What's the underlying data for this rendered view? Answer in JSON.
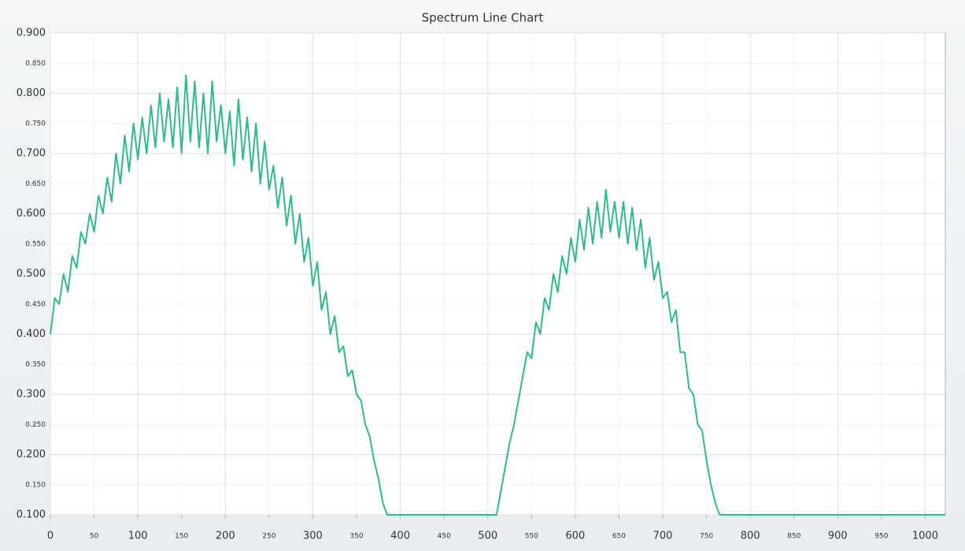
{
  "chart_data": {
    "type": "line",
    "title": "Spectrum Line Chart",
    "color": "#33b88e",
    "grid": true,
    "x": [
      0,
      5,
      10,
      15,
      20,
      25,
      30,
      35,
      40,
      45,
      50,
      55,
      60,
      65,
      70,
      75,
      80,
      85,
      90,
      95,
      100,
      105,
      110,
      115,
      120,
      125,
      130,
      135,
      140,
      145,
      150,
      155,
      160,
      165,
      170,
      175,
      180,
      185,
      190,
      195,
      200,
      205,
      210,
      215,
      220,
      225,
      230,
      235,
      240,
      245,
      250,
      255,
      260,
      265,
      270,
      275,
      280,
      285,
      290,
      295,
      300,
      305,
      310,
      315,
      320,
      325,
      330,
      335,
      340,
      345,
      350,
      355,
      360,
      365,
      370,
      375,
      380,
      385,
      510,
      515,
      520,
      525,
      530,
      535,
      540,
      545,
      550,
      555,
      560,
      565,
      570,
      575,
      580,
      585,
      590,
      595,
      600,
      605,
      610,
      615,
      620,
      625,
      630,
      635,
      640,
      645,
      650,
      655,
      660,
      665,
      670,
      675,
      680,
      685,
      690,
      695,
      700,
      705,
      710,
      715,
      720,
      725,
      730,
      735,
      740,
      745,
      750,
      755,
      760,
      765,
      1023
    ],
    "values": [
      0.4,
      0.46,
      0.45,
      0.5,
      0.47,
      0.53,
      0.51,
      0.57,
      0.55,
      0.6,
      0.57,
      0.63,
      0.6,
      0.66,
      0.62,
      0.7,
      0.65,
      0.73,
      0.67,
      0.75,
      0.69,
      0.76,
      0.7,
      0.78,
      0.71,
      0.8,
      0.72,
      0.79,
      0.71,
      0.81,
      0.7,
      0.83,
      0.72,
      0.82,
      0.71,
      0.8,
      0.7,
      0.82,
      0.72,
      0.78,
      0.7,
      0.77,
      0.68,
      0.79,
      0.69,
      0.76,
      0.67,
      0.75,
      0.65,
      0.72,
      0.64,
      0.68,
      0.61,
      0.66,
      0.58,
      0.63,
      0.55,
      0.6,
      0.52,
      0.56,
      0.48,
      0.52,
      0.44,
      0.47,
      0.4,
      0.43,
      0.37,
      0.38,
      0.33,
      0.34,
      0.3,
      0.29,
      0.25,
      0.23,
      0.19,
      0.16,
      0.12,
      0.1,
      0.1,
      0.14,
      0.18,
      0.22,
      0.25,
      0.29,
      0.33,
      0.37,
      0.36,
      0.42,
      0.4,
      0.46,
      0.44,
      0.5,
      0.47,
      0.53,
      0.5,
      0.56,
      0.52,
      0.59,
      0.54,
      0.61,
      0.55,
      0.62,
      0.56,
      0.64,
      0.57,
      0.62,
      0.56,
      0.62,
      0.55,
      0.61,
      0.54,
      0.59,
      0.51,
      0.56,
      0.49,
      0.52,
      0.46,
      0.47,
      0.42,
      0.44,
      0.37,
      0.37,
      0.31,
      0.3,
      0.25,
      0.24,
      0.19,
      0.15,
      0.12,
      0.1,
      0.1
    ],
    "xlim": [
      0,
      1023
    ],
    "xticks": [
      0,
      50,
      100,
      150,
      200,
      250,
      300,
      350,
      400,
      450,
      500,
      550,
      600,
      650,
      700,
      750,
      800,
      850,
      900,
      950,
      1000
    ],
    "ylim": [
      0.1,
      0.9
    ],
    "yticks": [
      {
        "value": 0.1,
        "label": "0.100"
      },
      {
        "value": 0.15,
        "label": "0.150"
      },
      {
        "value": 0.2,
        "label": "0.200"
      },
      {
        "value": 0.25,
        "label": "0.250"
      },
      {
        "value": 0.3,
        "label": "0.300"
      },
      {
        "value": 0.35,
        "label": "0.350"
      },
      {
        "value": 0.4,
        "label": "0.400"
      },
      {
        "value": 0.45,
        "label": "0.450"
      },
      {
        "value": 0.5,
        "label": "0.500"
      },
      {
        "value": 0.55,
        "label": "0.550"
      },
      {
        "value": 0.6,
        "label": "0.600"
      },
      {
        "value": 0.65,
        "label": "0.650"
      },
      {
        "value": 0.7,
        "label": "0.700"
      },
      {
        "value": 0.75,
        "label": "0.750"
      },
      {
        "value": 0.8,
        "label": "0.800"
      },
      {
        "value": 0.85,
        "label": "0.850"
      },
      {
        "value": 0.9,
        "label": "0.900"
      }
    ]
  }
}
